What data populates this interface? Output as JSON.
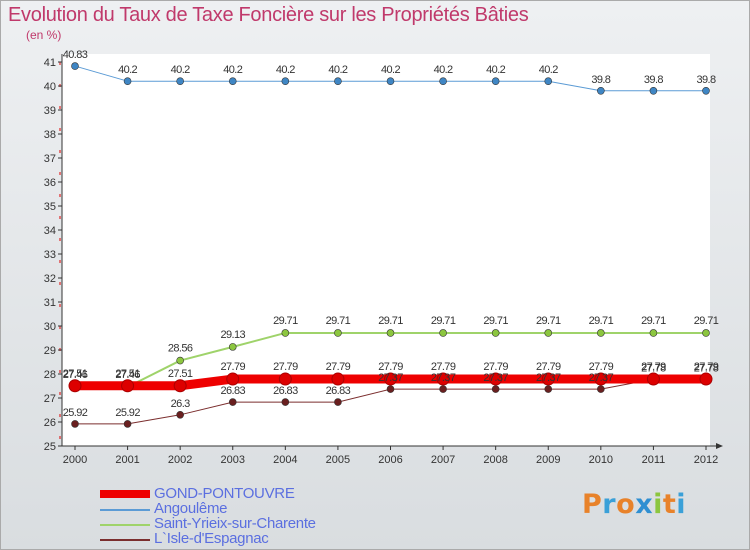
{
  "title": "Evolution du Taux de Taxe Foncière sur les Propriétés Bâties",
  "unit": "(en %)",
  "logo": {
    "letters": [
      "P",
      "r",
      "o",
      "x",
      "i",
      "t",
      "i"
    ],
    "colors": [
      "#e8822a",
      "#3aa0d8",
      "#e8822a",
      "#2f8fd2",
      "#8cc63f",
      "#e8822a",
      "#3aa0d8"
    ]
  },
  "chart_data": {
    "type": "line",
    "x": [
      "2000",
      "2001",
      "2002",
      "2003",
      "2004",
      "2005",
      "2006",
      "2007",
      "2008",
      "2009",
      "2010",
      "2011",
      "2012"
    ],
    "ylim": [
      25,
      41
    ],
    "yticks": [
      "25",
      "26",
      "27",
      "28",
      "29",
      "30",
      "31",
      "32",
      "33",
      "34",
      "35",
      "36",
      "37",
      "38",
      "39",
      "40",
      "41"
    ],
    "grid": false,
    "legend_position": "bottom-left",
    "series": [
      {
        "name": "GOND-PONTOUVRE",
        "color": "#ee0000",
        "width": 9,
        "values": [
          27.51,
          27.51,
          27.51,
          27.79,
          27.79,
          27.79,
          27.79,
          27.79,
          27.79,
          27.79,
          27.79,
          27.79,
          27.79
        ],
        "labels": [
          "27.51",
          "27.51",
          "27.51",
          "27.79",
          "27.79",
          "27.79",
          "27.79",
          "27.79",
          "27.79",
          "27.79",
          "27.79",
          "27.79",
          "27.79"
        ]
      },
      {
        "name": "Angoulême",
        "color": "#5b9bd5",
        "width": 1,
        "values": [
          40.83,
          40.2,
          40.2,
          40.2,
          40.2,
          40.2,
          40.2,
          40.2,
          40.2,
          40.2,
          39.8,
          39.8,
          39.8
        ],
        "labels": [
          "40.83",
          "40.2",
          "40.2",
          "40.2",
          "40.2",
          "40.2",
          "40.2",
          "40.2",
          "40.2",
          "40.2",
          "39.8",
          "39.8",
          "39.8"
        ]
      },
      {
        "name": "Saint-Yrieix-sur-Charente",
        "color": "#9fd36a",
        "width": 2,
        "values": [
          27.46,
          27.46,
          28.56,
          29.13,
          29.71,
          29.71,
          29.71,
          29.71,
          29.71,
          29.71,
          29.71,
          29.71,
          29.71
        ],
        "labels": [
          "27.46",
          "27.46",
          "28.56",
          "29.13",
          "29.71",
          "29.71",
          "29.71",
          "29.71",
          "29.71",
          "29.71",
          "29.71",
          "29.71",
          "29.71"
        ]
      },
      {
        "name": "L`Isle-d'Espagnac",
        "color": "#7b2e2e",
        "width": 1,
        "values": [
          25.92,
          25.92,
          26.3,
          26.83,
          26.83,
          26.83,
          27.37,
          27.37,
          27.37,
          27.37,
          27.37,
          27.78,
          27.78
        ],
        "labels": [
          "25.92",
          "25.92",
          "26.3",
          "26.83",
          "26.83",
          "26.83",
          "27.37",
          "27.37",
          "27.37",
          "27.37",
          "27.37",
          "27.78",
          "27.78"
        ]
      }
    ]
  }
}
